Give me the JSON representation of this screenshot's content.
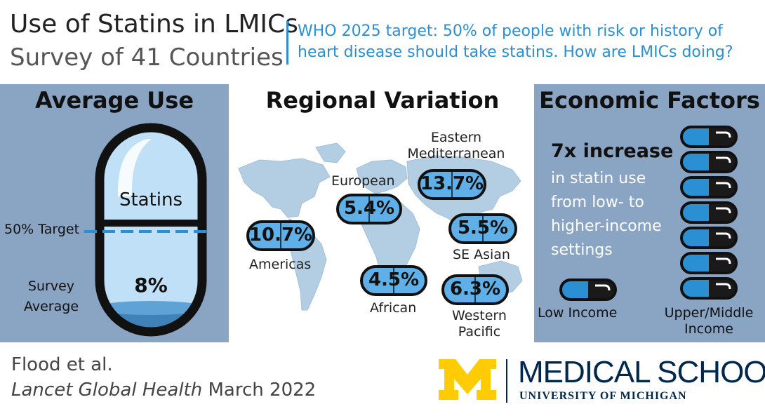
{
  "header": {
    "title": "Use of Statins in LMICs",
    "subtitle": "Survey of 41 Countries",
    "who_note": "WHO 2025 target: 50% of people with risk or history of heart disease should take statins. How are LMICs doing?"
  },
  "average_use": {
    "title": "Average Use",
    "pill_label": "Statins",
    "target_label": "50% Target",
    "survey_label": "Survey Average",
    "value_text": "8%",
    "target_fraction": 0.5,
    "value_fraction": 0.08
  },
  "regional": {
    "title": "Regional Variation",
    "regions": [
      {
        "name": "Americas",
        "value": "10.7%"
      },
      {
        "name": "European",
        "value": "5.4%"
      },
      {
        "name": "Eastern Mediterranean",
        "value": "13.7%"
      },
      {
        "name": "SE Asian",
        "value": "5.5%"
      },
      {
        "name": "African",
        "value": "4.5%"
      },
      {
        "name": "Western Pacific",
        "value": "6.3%"
      }
    ]
  },
  "economic": {
    "title": "Economic Factors",
    "headline": "7x increase",
    "body": "in statin use from low- to higher-income settings",
    "low_label": "Low Income",
    "high_label": "Upper/Middle Income",
    "low_pills": 1,
    "high_pills": 7
  },
  "citation": {
    "authors": "Flood et al.",
    "journal": "Lancet Global Health",
    "date": "March 2022"
  },
  "logo": {
    "name": "MEDICAL SCHOOL",
    "sub": "UNIVERSITY OF MICHIGAN",
    "colors": {
      "maize": "#ffcb05",
      "blue": "#00274c"
    }
  },
  "colors": {
    "accent": "#2a8fd3",
    "panel": "#8aa4c3",
    "pill_blue": "#2a8fd3",
    "pill_dark": "#1a1a1a"
  }
}
